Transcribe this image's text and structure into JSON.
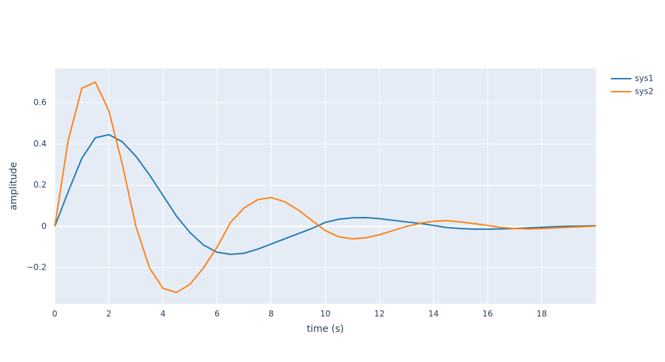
{
  "chart_data": {
    "type": "line",
    "x_label": "time (s)",
    "y_label": "amplitude",
    "x": [
      0,
      0.5,
      1,
      1.5,
      2,
      2.5,
      3,
      3.5,
      4,
      4.5,
      5,
      5.5,
      6,
      6.5,
      7,
      7.5,
      8,
      8.5,
      9,
      9.5,
      10,
      10.5,
      11,
      11.5,
      12,
      12.5,
      13,
      13.5,
      14,
      14.5,
      15,
      15.5,
      16,
      16.5,
      17,
      17.5,
      18,
      18.5,
      19,
      19.5,
      20
    ],
    "series": [
      {
        "name": "sys1",
        "color": "#1f77b4",
        "values": [
          0,
          0.17,
          0.33,
          0.43,
          0.445,
          0.41,
          0.34,
          0.25,
          0.15,
          0.05,
          -0.03,
          -0.09,
          -0.125,
          -0.135,
          -0.13,
          -0.11,
          -0.085,
          -0.06,
          -0.035,
          -0.01,
          0.02,
          0.035,
          0.042,
          0.043,
          0.038,
          0.03,
          0.022,
          0.015,
          0.005,
          -0.005,
          -0.01,
          -0.013,
          -0.013,
          -0.012,
          -0.01,
          -0.007,
          -0.004,
          -0.001,
          0.001,
          0.002,
          0.004
        ]
      },
      {
        "name": "sys2",
        "color": "#ff7f0e",
        "values": [
          0,
          0.42,
          0.67,
          0.7,
          0.56,
          0.3,
          0,
          -0.2,
          -0.3,
          -0.32,
          -0.28,
          -0.2,
          -0.1,
          0.02,
          0.09,
          0.13,
          0.14,
          0.12,
          0.08,
          0.03,
          -0.02,
          -0.05,
          -0.06,
          -0.055,
          -0.04,
          -0.02,
          0,
          0.015,
          0.025,
          0.028,
          0.022,
          0.014,
          0.005,
          -0.005,
          -0.01,
          -0.012,
          -0.01,
          -0.007,
          -0.004,
          -0.001,
          0.002
        ]
      }
    ],
    "xlim": [
      0,
      20
    ],
    "xticks": [
      0,
      2,
      4,
      6,
      8,
      10,
      12,
      14,
      16,
      18
    ],
    "ylim": [
      -0.375,
      0.766
    ],
    "yticks": [
      {
        "value": -0.2,
        "label": "−0.2"
      },
      0,
      0.2,
      0.4,
      0.6
    ],
    "grid": true,
    "legend": "right"
  }
}
